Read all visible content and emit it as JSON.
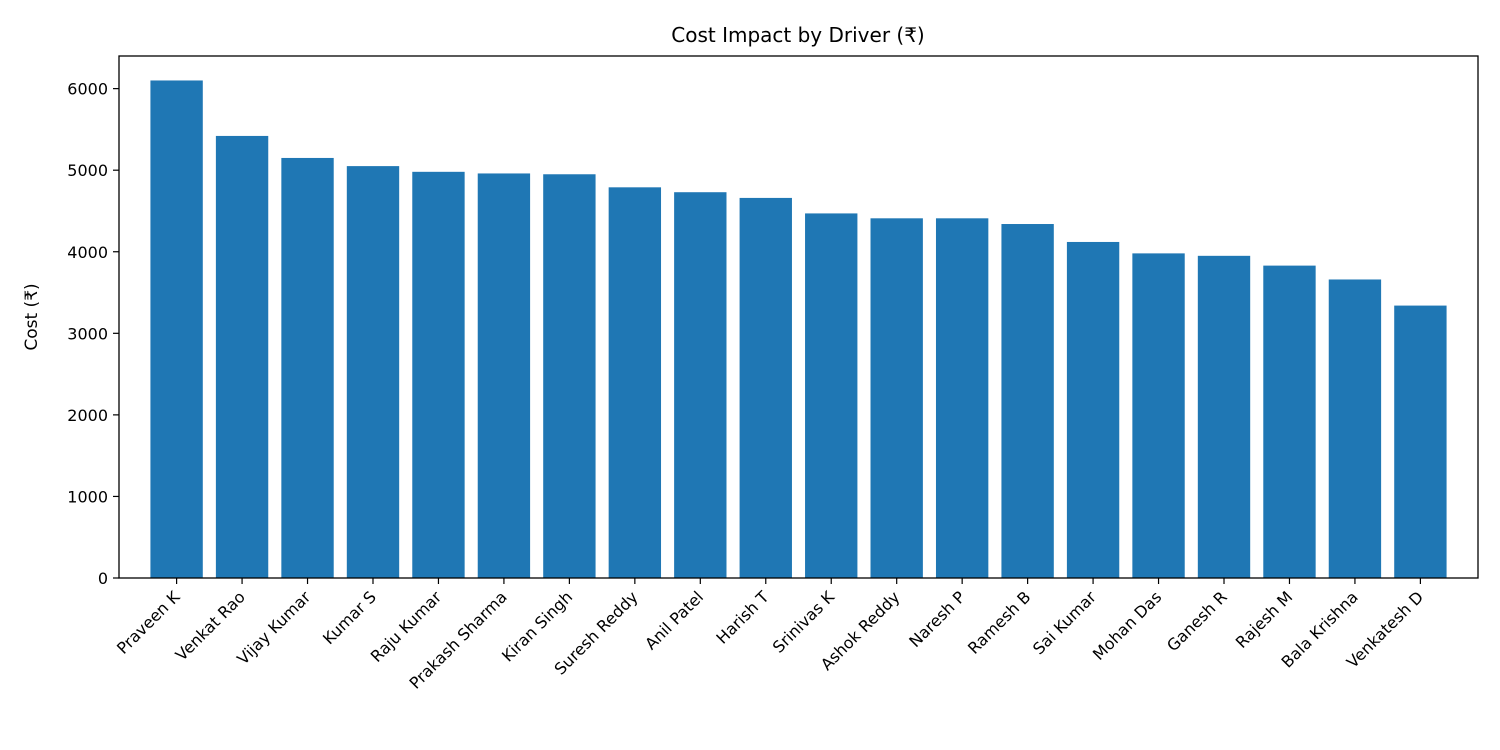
{
  "chart_data": {
    "type": "bar",
    "title": "Cost Impact by Driver (₹)",
    "xlabel": "",
    "ylabel": "Cost (₹)",
    "categories": [
      "Praveen K",
      "Venkat Rao",
      "Vijay Kumar",
      "Kumar S",
      "Raju Kumar",
      "Prakash Sharma",
      "Kiran Singh",
      "Suresh Reddy",
      "Anil Patel",
      "Harish T",
      "Srinivas K",
      "Ashok Reddy",
      "Naresh P",
      "Ramesh B",
      "Sai Kumar",
      "Mohan Das",
      "Ganesh R",
      "Rajesh M",
      "Bala Krishna",
      "Venkatesh D"
    ],
    "values": [
      6100,
      5420,
      5150,
      5050,
      4980,
      4960,
      4950,
      4790,
      4730,
      4660,
      4470,
      4410,
      4410,
      4340,
      4120,
      3980,
      3950,
      3830,
      3660,
      3340
    ],
    "ylim": [
      0,
      6400
    ],
    "yticks": [
      0,
      1000,
      2000,
      3000,
      4000,
      5000,
      6000
    ],
    "bar_color": "#1f77b4",
    "grid": false,
    "legend": "none"
  }
}
